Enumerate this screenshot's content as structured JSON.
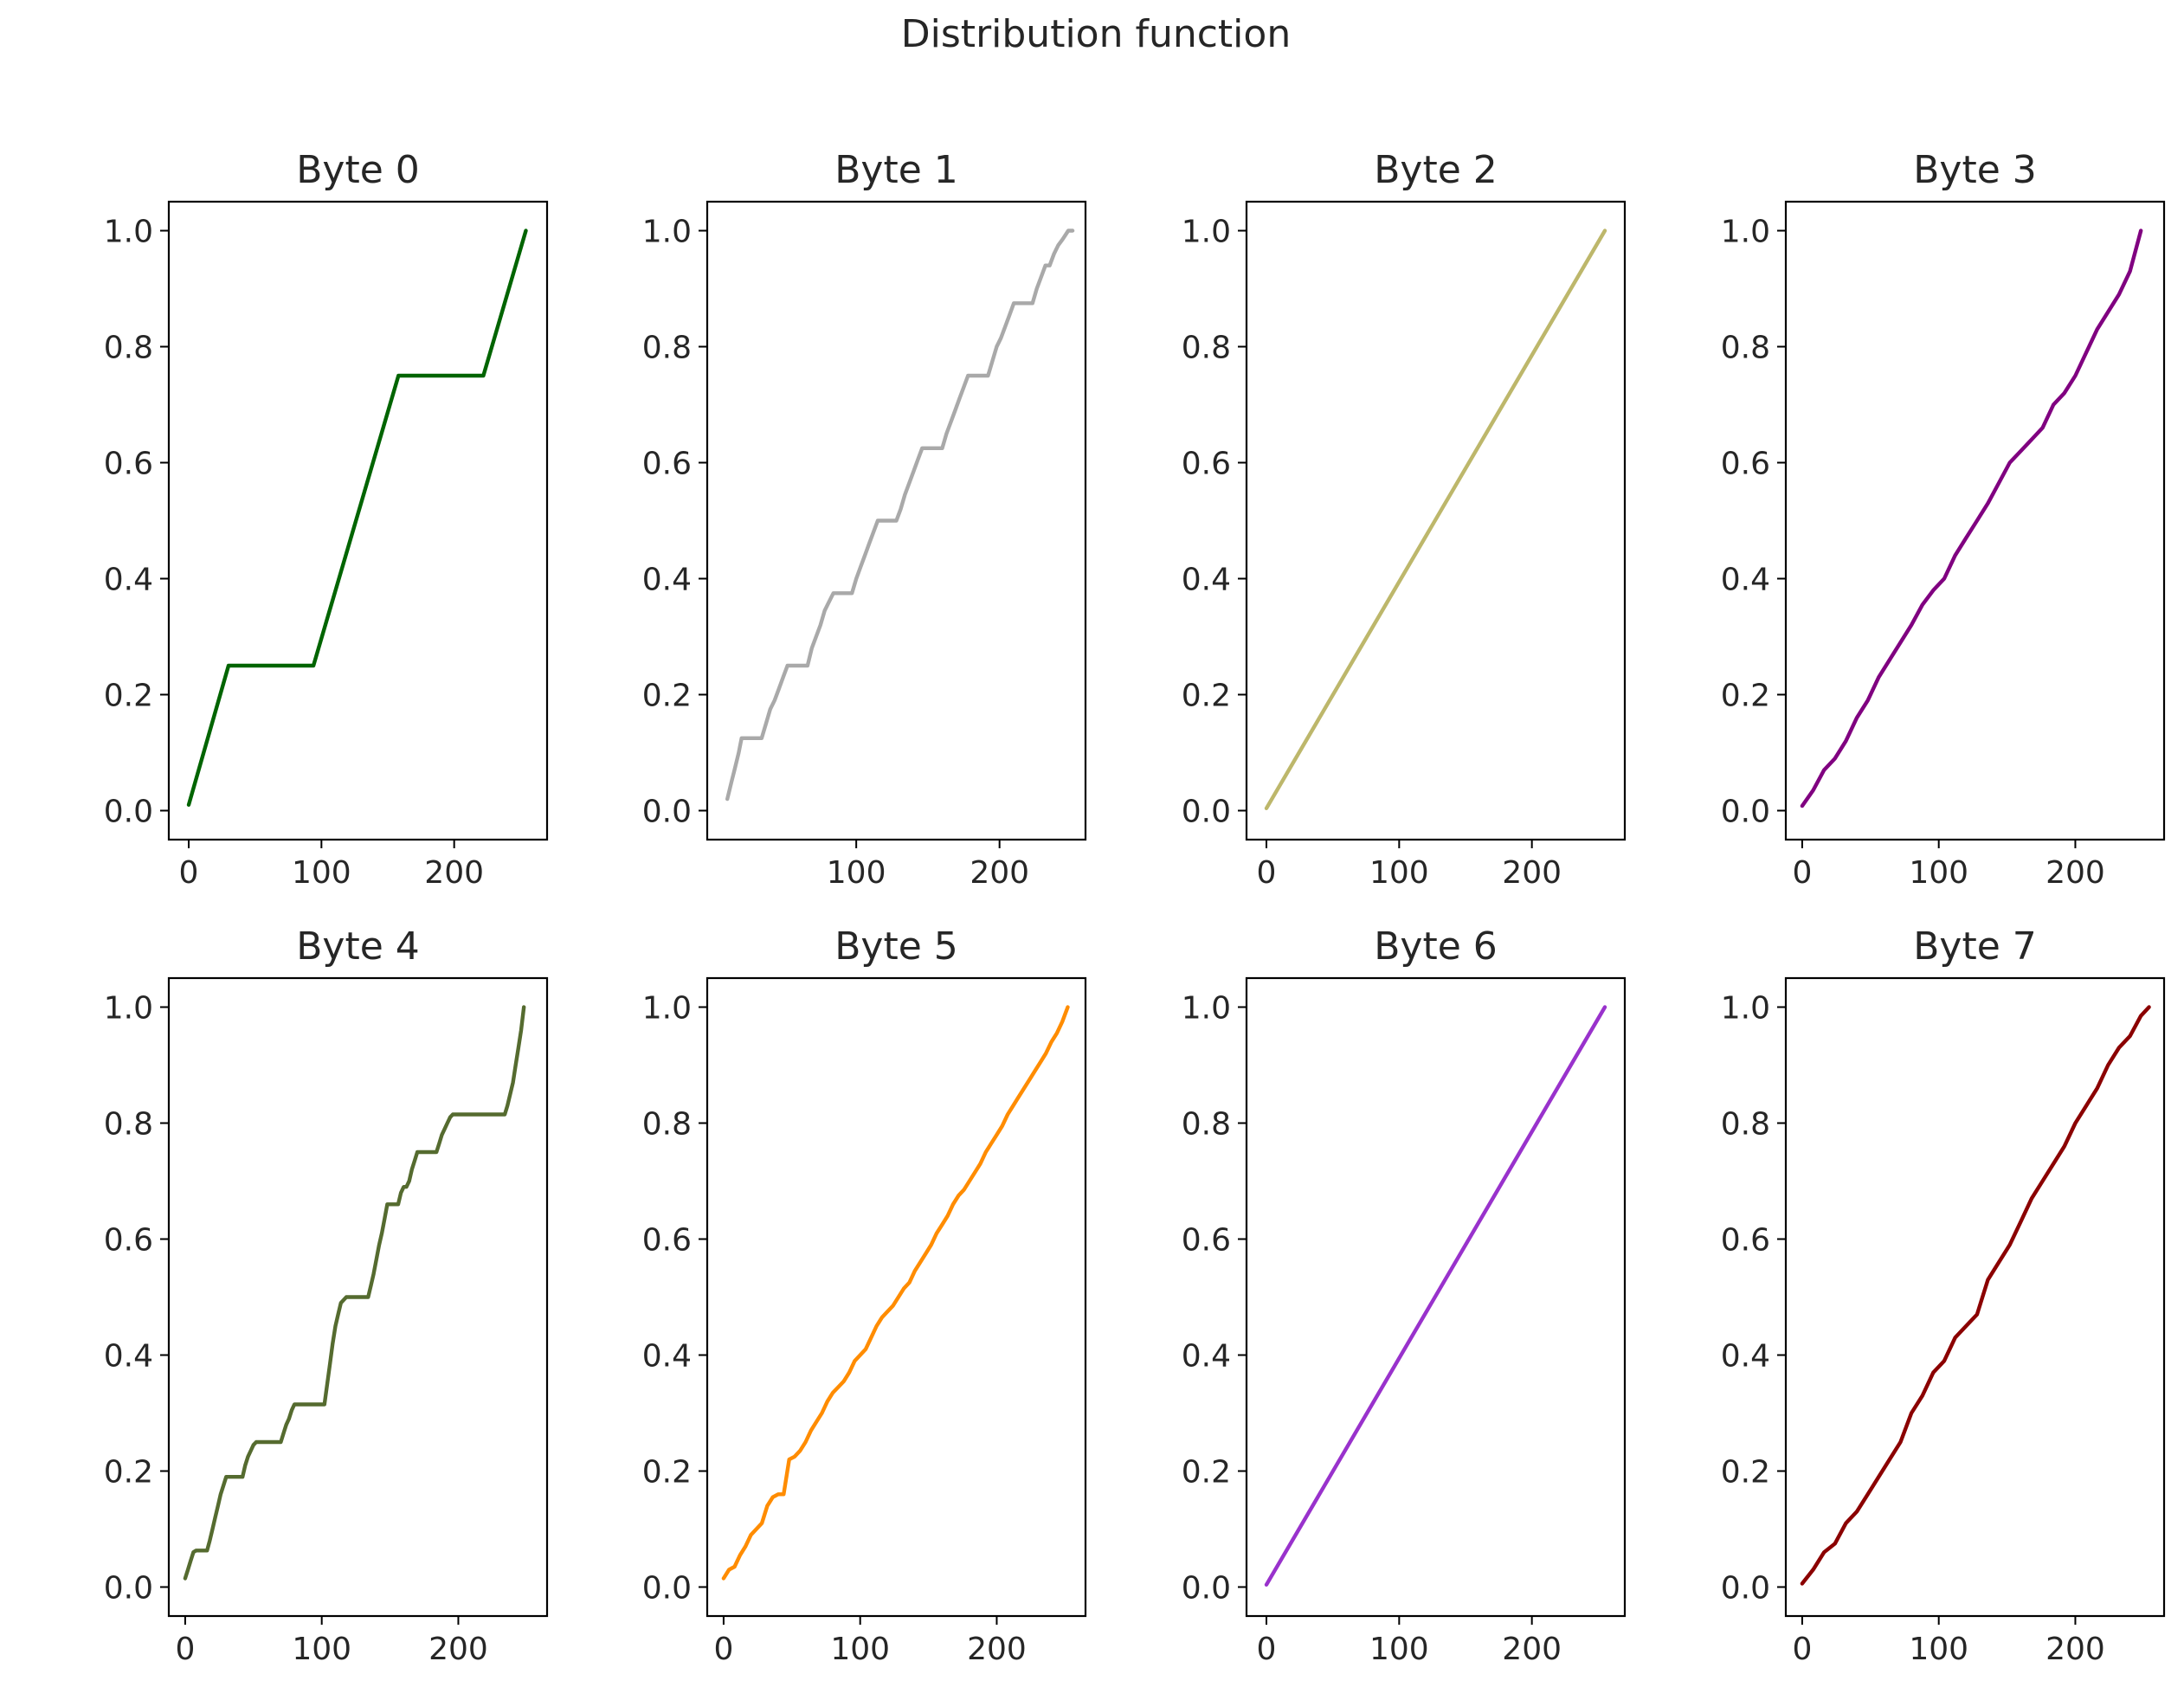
{
  "figure": {
    "title": "Distribution function"
  },
  "chart_data": [
    {
      "type": "line",
      "title": "Byte 0",
      "color": "#006400",
      "xlim": [
        -15,
        270
      ],
      "ylim": [
        -0.05,
        1.05
      ],
      "xticks": [
        0,
        100,
        200
      ],
      "yticks": [
        0.0,
        0.2,
        0.4,
        0.6,
        0.8,
        1.0
      ],
      "xtick_labels": [
        "0",
        "100",
        "200"
      ],
      "ytick_labels": [
        "0.0",
        "0.2",
        "0.4",
        "0.6",
        "0.8",
        "1.0"
      ],
      "series": [
        {
          "name": "Byte 0",
          "x": [
            0,
            30,
            94,
            158,
            222,
            254
          ],
          "y": [
            0.01,
            0.25,
            0.25,
            0.75,
            0.75,
            1.0
          ]
        }
      ]
    },
    {
      "type": "line",
      "title": "Byte 1",
      "color": "#a9a9a9",
      "xlim": [
        -4,
        260
      ],
      "ylim": [
        -0.05,
        1.05
      ],
      "xticks": [
        100,
        200
      ],
      "yticks": [
        0.0,
        0.2,
        0.4,
        0.6,
        0.8,
        1.0
      ],
      "xtick_labels": [
        "100",
        "200"
      ],
      "ytick_labels": [
        "0.0",
        "0.2",
        "0.4",
        "0.6",
        "0.8",
        "1.0"
      ],
      "series": [
        {
          "name": "Byte 1",
          "x": [
            10,
            13,
            15,
            18,
            20,
            34,
            37,
            40,
            43,
            46,
            49,
            52,
            55,
            66,
            69,
            72,
            75,
            78,
            81,
            84,
            87,
            97,
            100,
            103,
            106,
            109,
            112,
            115,
            118,
            128,
            131,
            134,
            137,
            140,
            143,
            146,
            149,
            160,
            163,
            166,
            169,
            172,
            175,
            178,
            181,
            192,
            195,
            198,
            201,
            204,
            207,
            210,
            213,
            223,
            226,
            229,
            232,
            235,
            238,
            241,
            244,
            248,
            251
          ],
          "y": [
            0.02,
            0.05,
            0.07,
            0.1,
            0.125,
            0.125,
            0.15,
            0.175,
            0.19,
            0.21,
            0.23,
            0.25,
            0.25,
            0.25,
            0.28,
            0.3,
            0.32,
            0.345,
            0.36,
            0.375,
            0.375,
            0.375,
            0.4,
            0.42,
            0.44,
            0.46,
            0.48,
            0.5,
            0.5,
            0.5,
            0.52,
            0.545,
            0.565,
            0.585,
            0.605,
            0.625,
            0.625,
            0.625,
            0.65,
            0.67,
            0.69,
            0.71,
            0.73,
            0.75,
            0.75,
            0.75,
            0.775,
            0.8,
            0.815,
            0.835,
            0.855,
            0.875,
            0.875,
            0.875,
            0.9,
            0.92,
            0.94,
            0.94,
            0.96,
            0.975,
            0.985,
            1.0,
            1.0
          ]
        }
      ]
    },
    {
      "type": "line",
      "title": "Byte 2",
      "color": "#bdb76b",
      "xlim": [
        -15,
        270
      ],
      "ylim": [
        -0.05,
        1.05
      ],
      "xticks": [
        0,
        100,
        200
      ],
      "yticks": [
        0.0,
        0.2,
        0.4,
        0.6,
        0.8,
        1.0
      ],
      "xtick_labels": [
        "0",
        "100",
        "200"
      ],
      "ytick_labels": [
        "0.0",
        "0.2",
        "0.4",
        "0.6",
        "0.8",
        "1.0"
      ],
      "series": [
        {
          "name": "Byte 2",
          "x": [
            0,
            255
          ],
          "y": [
            0.004,
            1.0
          ]
        }
      ]
    },
    {
      "type": "line",
      "title": "Byte 3",
      "color": "#800080",
      "xlim": [
        -12,
        265
      ],
      "ylim": [
        -0.05,
        1.05
      ],
      "xticks": [
        0,
        100,
        200
      ],
      "yticks": [
        0.0,
        0.2,
        0.4,
        0.6,
        0.8,
        1.0
      ],
      "xtick_labels": [
        "0",
        "100",
        "200"
      ],
      "ytick_labels": [
        "0.0",
        "0.2",
        "0.4",
        "0.6",
        "0.8",
        "1.0"
      ],
      "series": [
        {
          "name": "Byte 3",
          "x": [
            0,
            8,
            16,
            24,
            32,
            40,
            48,
            56,
            64,
            72,
            80,
            88,
            96,
            104,
            112,
            120,
            128,
            136,
            144,
            152,
            160,
            168,
            176,
            184,
            192,
            200,
            208,
            216,
            224,
            232,
            240,
            248
          ],
          "y": [
            0.008,
            0.035,
            0.07,
            0.09,
            0.12,
            0.16,
            0.19,
            0.23,
            0.26,
            0.29,
            0.32,
            0.355,
            0.38,
            0.4,
            0.44,
            0.47,
            0.5,
            0.53,
            0.565,
            0.6,
            0.62,
            0.64,
            0.66,
            0.7,
            0.72,
            0.75,
            0.79,
            0.83,
            0.86,
            0.89,
            0.93,
            1.0
          ]
        }
      ]
    },
    {
      "type": "line",
      "title": "Byte 4",
      "color": "#556b2f",
      "xlim": [
        -12,
        265
      ],
      "ylim": [
        -0.05,
        1.05
      ],
      "xticks": [
        0,
        100,
        200
      ],
      "yticks": [
        0.0,
        0.2,
        0.4,
        0.6,
        0.8,
        1.0
      ],
      "xtick_labels": [
        "0",
        "100",
        "200"
      ],
      "ytick_labels": [
        "0.0",
        "0.2",
        "0.4",
        "0.6",
        "0.8",
        "1.0"
      ],
      "series": [
        {
          "name": "Byte 4",
          "x": [
            0,
            2,
            4,
            6,
            8,
            16,
            18,
            20,
            22,
            24,
            26,
            28,
            30,
            42,
            44,
            46,
            48,
            50,
            52,
            54,
            56,
            70,
            72,
            74,
            76,
            78,
            80,
            102,
            104,
            106,
            108,
            110,
            112,
            114,
            118,
            134,
            136,
            138,
            140,
            142,
            144,
            146,
            148,
            156,
            158,
            160,
            162,
            164,
            166,
            168,
            170,
            184,
            186,
            188,
            190,
            192,
            194,
            196,
            198,
            234,
            236,
            238,
            240,
            242,
            244,
            246,
            248
          ],
          "y": [
            0.015,
            0.03,
            0.045,
            0.06,
            0.063,
            0.063,
            0.08,
            0.1,
            0.12,
            0.14,
            0.16,
            0.175,
            0.19,
            0.19,
            0.21,
            0.225,
            0.235,
            0.245,
            0.25,
            0.25,
            0.25,
            0.25,
            0.265,
            0.28,
            0.29,
            0.305,
            0.315,
            0.315,
            0.35,
            0.385,
            0.42,
            0.45,
            0.47,
            0.49,
            0.5,
            0.5,
            0.52,
            0.54,
            0.565,
            0.59,
            0.61,
            0.635,
            0.66,
            0.66,
            0.68,
            0.69,
            0.69,
            0.7,
            0.72,
            0.735,
            0.75,
            0.75,
            0.765,
            0.78,
            0.79,
            0.8,
            0.81,
            0.815,
            0.815,
            0.815,
            0.83,
            0.85,
            0.87,
            0.9,
            0.93,
            0.96,
            1.0
          ]
        }
      ]
    },
    {
      "type": "line",
      "title": "Byte 5",
      "color": "#ff8c00",
      "xlim": [
        -12,
        265
      ],
      "ylim": [
        -0.05,
        1.05
      ],
      "xticks": [
        0,
        100,
        200
      ],
      "yticks": [
        0.0,
        0.2,
        0.4,
        0.6,
        0.8,
        1.0
      ],
      "xtick_labels": [
        "0",
        "100",
        "200"
      ],
      "ytick_labels": [
        "0.0",
        "0.2",
        "0.4",
        "0.6",
        "0.8",
        "1.0"
      ],
      "series": [
        {
          "name": "Byte 5",
          "x": [
            0,
            4,
            8,
            12,
            16,
            20,
            24,
            28,
            32,
            36,
            40,
            44,
            48,
            52,
            56,
            60,
            64,
            68,
            72,
            76,
            80,
            84,
            88,
            92,
            96,
            100,
            104,
            108,
            112,
            116,
            120,
            124,
            128,
            132,
            136,
            140,
            144,
            148,
            152,
            156,
            160,
            164,
            168,
            172,
            176,
            180,
            184,
            188,
            192,
            196,
            200,
            204,
            208,
            212,
            216,
            220,
            224,
            228,
            232,
            236,
            240,
            244,
            248,
            252
          ],
          "y": [
            0.015,
            0.03,
            0.035,
            0.055,
            0.07,
            0.09,
            0.1,
            0.11,
            0.14,
            0.155,
            0.16,
            0.16,
            0.22,
            0.225,
            0.235,
            0.25,
            0.27,
            0.285,
            0.3,
            0.32,
            0.335,
            0.345,
            0.355,
            0.37,
            0.39,
            0.4,
            0.41,
            0.43,
            0.45,
            0.465,
            0.475,
            0.485,
            0.5,
            0.515,
            0.525,
            0.545,
            0.56,
            0.575,
            0.59,
            0.61,
            0.625,
            0.64,
            0.66,
            0.675,
            0.685,
            0.7,
            0.715,
            0.73,
            0.75,
            0.765,
            0.78,
            0.795,
            0.815,
            0.83,
            0.845,
            0.86,
            0.875,
            0.89,
            0.905,
            0.92,
            0.94,
            0.955,
            0.975,
            1.0
          ]
        }
      ]
    },
    {
      "type": "line",
      "title": "Byte 6",
      "color": "#9932cc",
      "xlim": [
        -15,
        270
      ],
      "ylim": [
        -0.05,
        1.05
      ],
      "xticks": [
        0,
        100,
        200
      ],
      "yticks": [
        0.0,
        0.2,
        0.4,
        0.6,
        0.8,
        1.0
      ],
      "xtick_labels": [
        "0",
        "100",
        "200"
      ],
      "ytick_labels": [
        "0.0",
        "0.2",
        "0.4",
        "0.6",
        "0.8",
        "1.0"
      ],
      "series": [
        {
          "name": "Byte 6",
          "x": [
            0,
            255
          ],
          "y": [
            0.004,
            1.0
          ]
        }
      ]
    },
    {
      "type": "line",
      "title": "Byte 7",
      "color": "#8b0000",
      "xlim": [
        -12,
        265
      ],
      "ylim": [
        -0.05,
        1.05
      ],
      "xticks": [
        0,
        100,
        200
      ],
      "yticks": [
        0.0,
        0.2,
        0.4,
        0.6,
        0.8,
        1.0
      ],
      "xtick_labels": [
        "0",
        "100",
        "200"
      ],
      "ytick_labels": [
        "0.0",
        "0.2",
        "0.4",
        "0.6",
        "0.8",
        "1.0"
      ],
      "series": [
        {
          "name": "Byte 7",
          "x": [
            0,
            8,
            16,
            24,
            32,
            40,
            48,
            56,
            64,
            72,
            80,
            88,
            96,
            104,
            112,
            120,
            128,
            136,
            144,
            152,
            160,
            168,
            176,
            184,
            192,
            200,
            208,
            216,
            224,
            232,
            240,
            248,
            254
          ],
          "y": [
            0.006,
            0.03,
            0.06,
            0.075,
            0.11,
            0.13,
            0.16,
            0.19,
            0.22,
            0.25,
            0.3,
            0.33,
            0.37,
            0.39,
            0.43,
            0.45,
            0.47,
            0.53,
            0.56,
            0.59,
            0.63,
            0.67,
            0.7,
            0.73,
            0.76,
            0.8,
            0.83,
            0.86,
            0.9,
            0.93,
            0.95,
            0.985,
            1.0
          ]
        }
      ]
    }
  ]
}
